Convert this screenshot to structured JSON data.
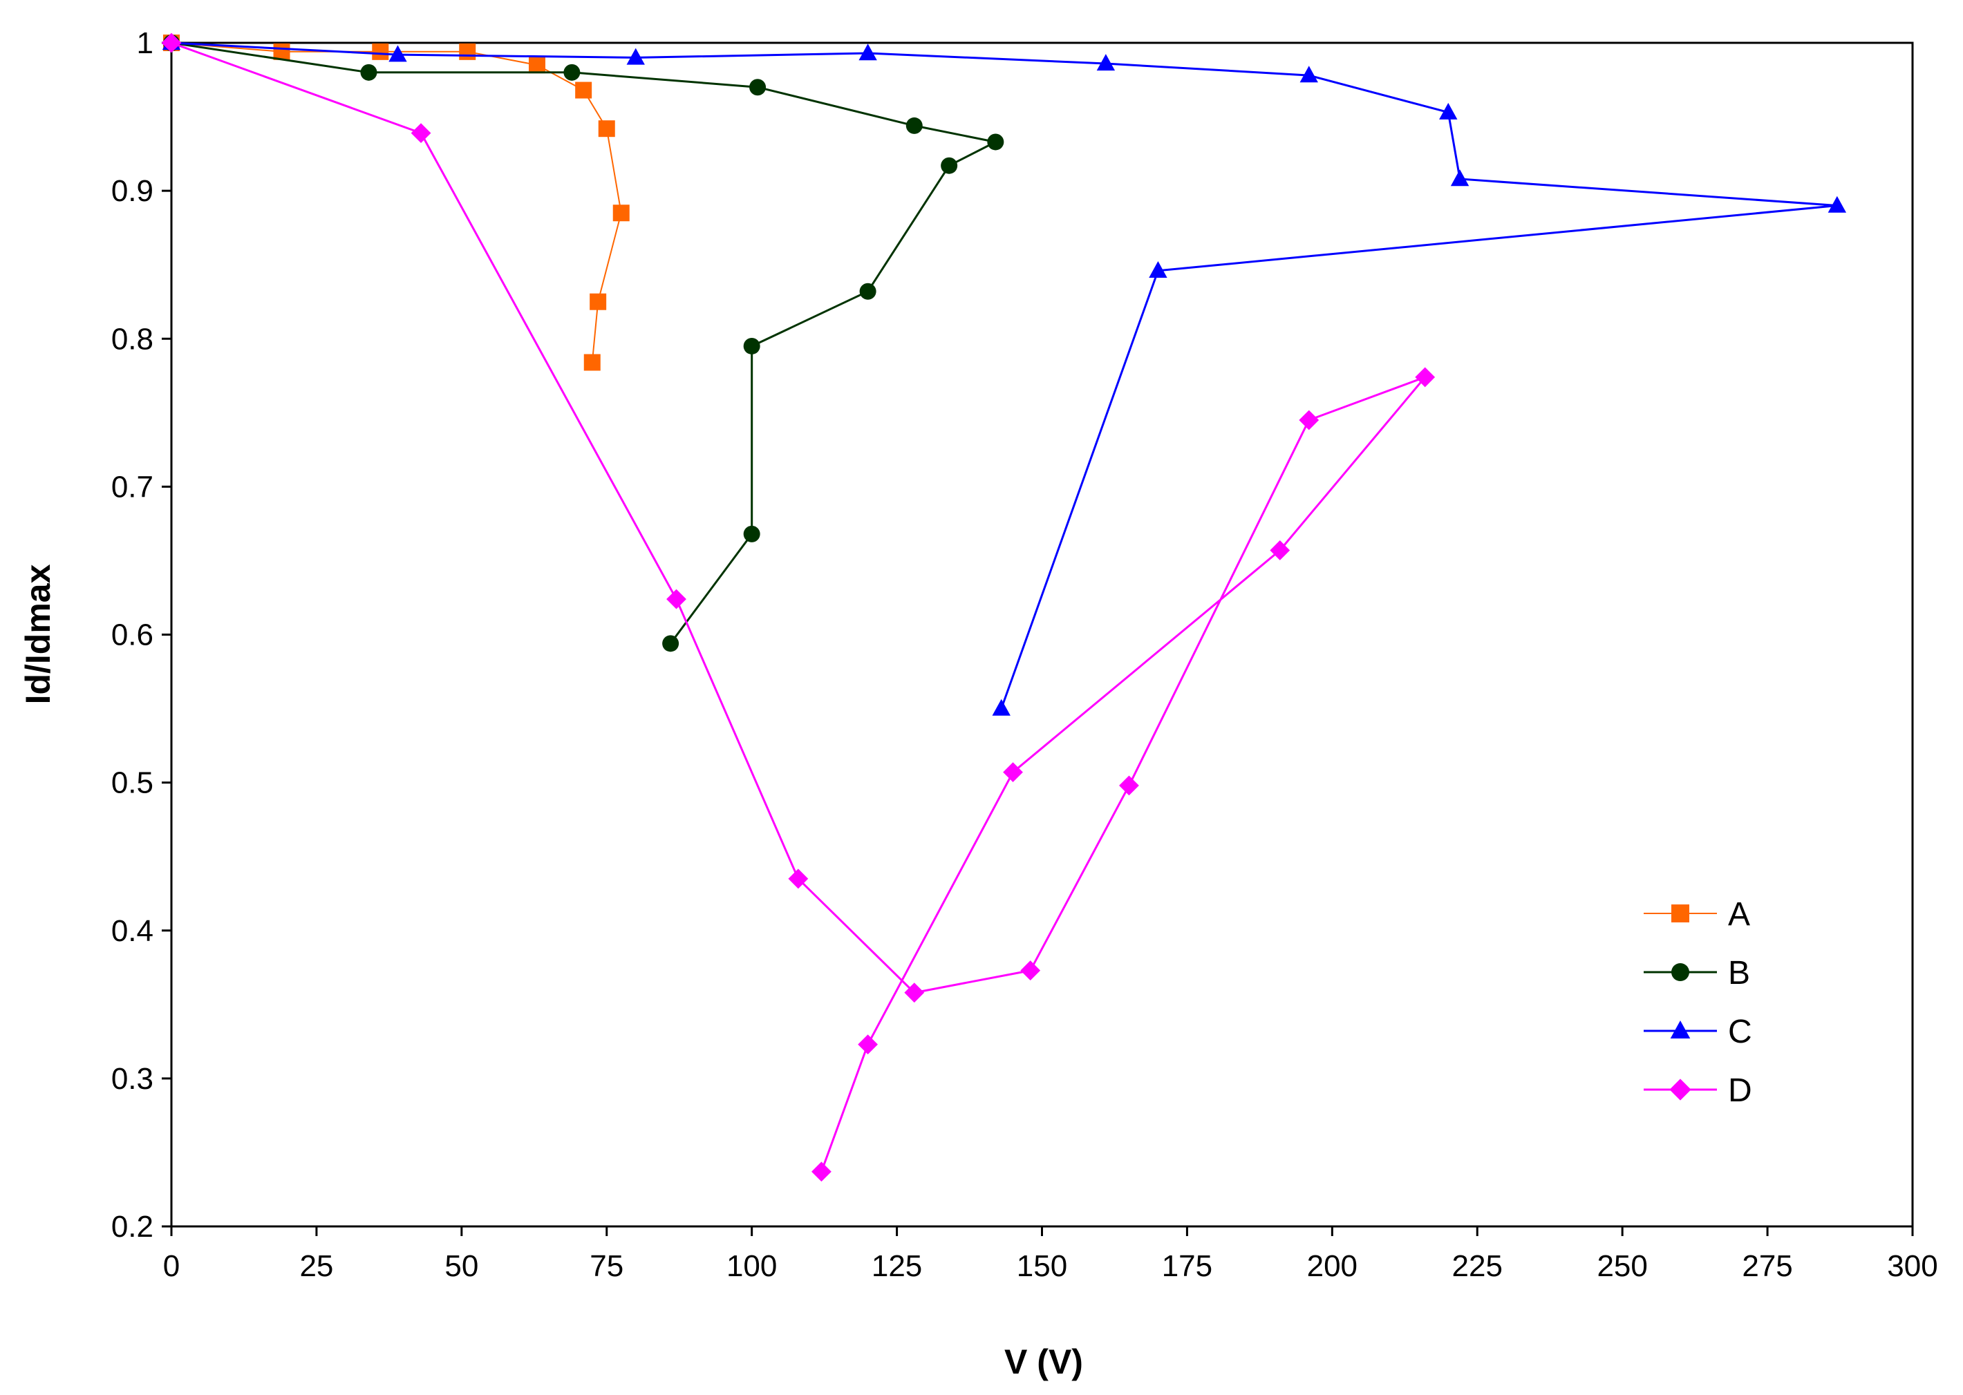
{
  "chart_data": {
    "type": "line",
    "title": "",
    "xlabel": "V (V)",
    "ylabel": "Id/Idmax",
    "xlim": [
      0,
      300
    ],
    "ylim": [
      0.2,
      1
    ],
    "xticks": [
      "0",
      "25",
      "50",
      "75",
      "100",
      "125",
      "150",
      "175",
      "200",
      "225",
      "250",
      "275",
      "300"
    ],
    "yticks": [
      "0.2",
      "0.3",
      "0.4",
      "0.5",
      "0.6",
      "0.7",
      "0.8",
      "0.9",
      "1"
    ],
    "grid": false,
    "legend_position": "bottom-right",
    "series": [
      {
        "name": "A",
        "color": "#FF6600",
        "marker": "square",
        "points": [
          [
            0,
            1.0
          ],
          [
            19,
            0.994
          ],
          [
            36,
            0.994
          ],
          [
            51,
            0.994
          ],
          [
            63,
            0.985
          ],
          [
            71,
            0.968
          ],
          [
            75,
            0.942
          ],
          [
            77.5,
            0.885
          ],
          [
            73.5,
            0.825
          ],
          [
            72.5,
            0.784
          ]
        ]
      },
      {
        "name": "B",
        "color": "#003300",
        "marker": "circle",
        "points": [
          [
            0,
            1.0
          ],
          [
            34,
            0.98
          ],
          [
            69,
            0.98
          ],
          [
            101,
            0.97
          ],
          [
            128,
            0.944
          ],
          [
            142,
            0.933
          ],
          [
            134,
            0.917
          ],
          [
            120,
            0.832
          ],
          [
            100,
            0.795
          ],
          [
            100,
            0.668
          ],
          [
            86,
            0.594
          ]
        ]
      },
      {
        "name": "C",
        "color": "#0000FF",
        "marker": "triangle",
        "points": [
          [
            0,
            1.0
          ],
          [
            39,
            0.992
          ],
          [
            80,
            0.99
          ],
          [
            120,
            0.993
          ],
          [
            161,
            0.986
          ],
          [
            196,
            0.978
          ],
          [
            220,
            0.953
          ],
          [
            222,
            0.908
          ],
          [
            287,
            0.89
          ],
          [
            170,
            0.846
          ],
          [
            143,
            0.55
          ]
        ]
      },
      {
        "name": "D",
        "color": "#FF00FF",
        "marker": "diamond",
        "points": [
          [
            0,
            1.0
          ],
          [
            43,
            0.939
          ],
          [
            87,
            0.624
          ],
          [
            108,
            0.435
          ],
          [
            128,
            0.358
          ],
          [
            148,
            0.373
          ],
          [
            165,
            0.498
          ],
          [
            196,
            0.745
          ],
          [
            216,
            0.774
          ],
          [
            191,
            0.657
          ],
          [
            145,
            0.507
          ],
          [
            120,
            0.323
          ],
          [
            112,
            0.237
          ]
        ]
      }
    ]
  }
}
